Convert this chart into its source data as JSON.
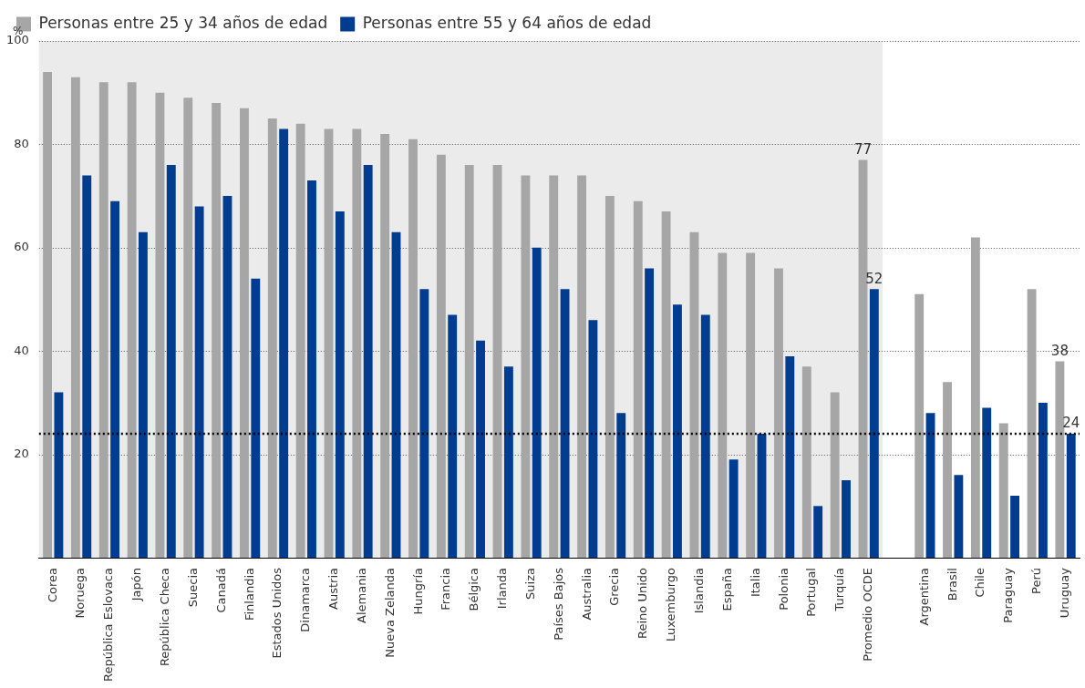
{
  "chart_data": {
    "type": "bar",
    "ylabel": "%",
    "categories": [
      "Corea",
      "Noruega",
      "República Eslovaca",
      "Japón",
      "República Checa",
      "Suecia",
      "Canadá",
      "Finlandia",
      "Estados Unidos",
      "Dinamarca",
      "Austria",
      "Alemania",
      "Nueva Zelanda",
      "Hungría",
      "Francia",
      "Bélgica",
      "Irlanda",
      "Suiza",
      "Países Bajos",
      "Australia",
      "Grecia",
      "Reino Unido",
      "Luxemburgo",
      "Islandia",
      "España",
      "Italia",
      "Polonia",
      "Portugal",
      "Turquía",
      "Promedio OCDE",
      null,
      "Argentina",
      "Brasil",
      "Chile",
      "Paraguay",
      "Perú",
      "Uruguay"
    ],
    "series": [
      {
        "name": "Personas entre 25 y 34 años de edad",
        "color": "#a6a6a6",
        "values": [
          94,
          93,
          92,
          92,
          90,
          89,
          88,
          87,
          85,
          84,
          83,
          83,
          82,
          81,
          78,
          76,
          76,
          74,
          74,
          74,
          70,
          69,
          67,
          63,
          59,
          59,
          56,
          37,
          32,
          77,
          null,
          51,
          34,
          62,
          26,
          52,
          38
        ],
        "value_labels": [
          null,
          null,
          null,
          null,
          null,
          null,
          null,
          null,
          null,
          null,
          null,
          null,
          null,
          null,
          null,
          null,
          null,
          null,
          null,
          null,
          null,
          null,
          null,
          null,
          null,
          null,
          null,
          null,
          null,
          "77",
          null,
          null,
          null,
          null,
          null,
          null,
          "38"
        ]
      },
      {
        "name": "Personas entre 55 y 64 años de edad",
        "color": "#003c8f",
        "values": [
          32,
          74,
          69,
          63,
          76,
          68,
          70,
          54,
          83,
          73,
          67,
          76,
          63,
          52,
          47,
          42,
          37,
          60,
          52,
          46,
          28,
          56,
          49,
          47,
          19,
          24,
          39,
          10,
          15,
          52,
          null,
          28,
          16,
          29,
          12,
          30,
          24
        ],
        "value_labels": [
          null,
          null,
          null,
          null,
          null,
          null,
          null,
          null,
          null,
          null,
          null,
          null,
          null,
          null,
          null,
          null,
          null,
          null,
          null,
          null,
          null,
          null,
          null,
          null,
          null,
          null,
          null,
          null,
          null,
          "52",
          null,
          null,
          null,
          null,
          null,
          null,
          "24"
        ]
      }
    ],
    "ylim": [
      0,
      100
    ],
    "yticks": [
      {
        "value": 0,
        "label": null
      },
      20,
      40,
      60,
      80,
      100
    ],
    "grid": "y",
    "legend": "top left",
    "bands": [
      {
        "axis": "x",
        "from": "Corea",
        "to": "Promedio OCDE",
        "color": "#ebebeb"
      }
    ],
    "ref_lines": [
      {
        "axis": "y",
        "value": 24,
        "color": "#000000",
        "line_style": "dotted"
      }
    ]
  }
}
